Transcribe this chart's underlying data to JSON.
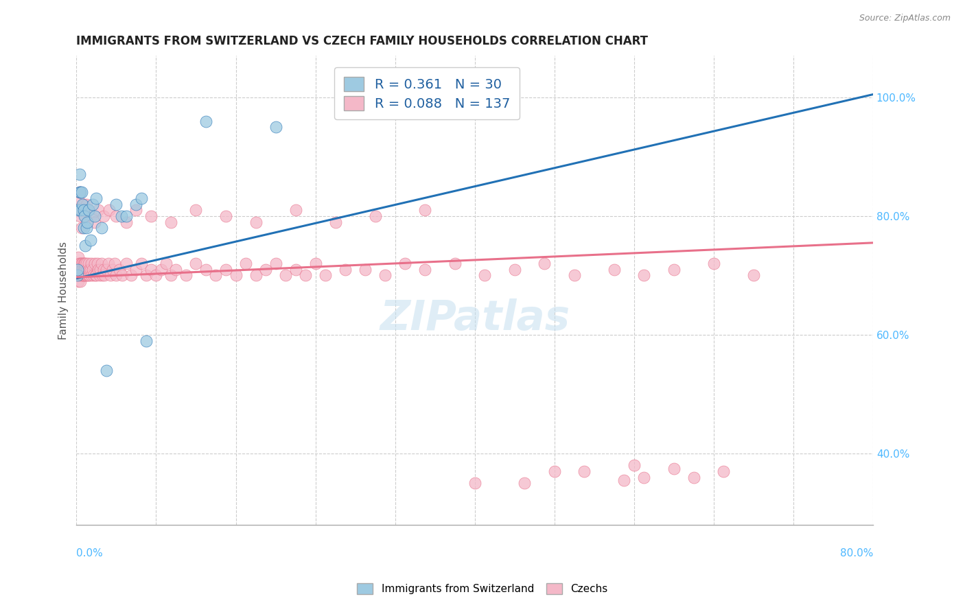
{
  "title": "IMMIGRANTS FROM SWITZERLAND VS CZECH FAMILY HOUSEHOLDS CORRELATION CHART",
  "source": "Source: ZipAtlas.com",
  "ylabel": "Family Households",
  "legend1_label": "Immigrants from Switzerland",
  "legend2_label": "Czechs",
  "R1": 0.361,
  "N1": 30,
  "R2": 0.088,
  "N2": 137,
  "color_blue": "#9ecae1",
  "color_pink": "#f4b8c8",
  "color_blue_line": "#2171b5",
  "color_pink_line": "#e8708a",
  "color_axis_labels": "#4db8ff",
  "watermark": "ZIPatlas",
  "xmin": 0.0,
  "xmax": 0.8,
  "ymin": 0.28,
  "ymax": 1.07,
  "yticks": [
    0.4,
    0.6,
    0.8,
    1.0
  ],
  "ytick_labels": [
    "40.0%",
    "60.0%",
    "80.0%",
    "100.0%"
  ],
  "swiss_x": [
    0.001,
    0.001,
    0.002,
    0.003,
    0.003,
    0.004,
    0.004,
    0.005,
    0.006,
    0.007,
    0.007,
    0.008,
    0.009,
    0.01,
    0.011,
    0.012,
    0.014,
    0.016,
    0.018,
    0.02,
    0.025,
    0.03,
    0.04,
    0.045,
    0.05,
    0.06,
    0.065,
    0.07,
    0.13,
    0.2
  ],
  "swiss_y": [
    0.7,
    0.71,
    0.81,
    0.87,
    0.84,
    0.84,
    0.81,
    0.84,
    0.82,
    0.81,
    0.78,
    0.8,
    0.75,
    0.78,
    0.79,
    0.81,
    0.76,
    0.82,
    0.8,
    0.83,
    0.78,
    0.54,
    0.82,
    0.8,
    0.8,
    0.82,
    0.83,
    0.59,
    0.96,
    0.95
  ],
  "czech_x": [
    0.001,
    0.001,
    0.002,
    0.002,
    0.002,
    0.003,
    0.003,
    0.003,
    0.004,
    0.004,
    0.004,
    0.005,
    0.005,
    0.005,
    0.006,
    0.006,
    0.006,
    0.007,
    0.007,
    0.007,
    0.008,
    0.008,
    0.008,
    0.009,
    0.009,
    0.009,
    0.01,
    0.01,
    0.01,
    0.011,
    0.011,
    0.012,
    0.012,
    0.013,
    0.013,
    0.014,
    0.015,
    0.015,
    0.016,
    0.017,
    0.018,
    0.019,
    0.02,
    0.021,
    0.022,
    0.023,
    0.024,
    0.025,
    0.026,
    0.027,
    0.028,
    0.03,
    0.032,
    0.034,
    0.036,
    0.038,
    0.04,
    0.043,
    0.046,
    0.05,
    0.055,
    0.06,
    0.065,
    0.07,
    0.075,
    0.08,
    0.085,
    0.09,
    0.095,
    0.1,
    0.11,
    0.12,
    0.13,
    0.14,
    0.15,
    0.16,
    0.17,
    0.18,
    0.19,
    0.2,
    0.21,
    0.22,
    0.23,
    0.24,
    0.25,
    0.27,
    0.29,
    0.31,
    0.33,
    0.35,
    0.38,
    0.41,
    0.44,
    0.47,
    0.5,
    0.54,
    0.57,
    0.6,
    0.64,
    0.68,
    0.002,
    0.003,
    0.004,
    0.005,
    0.006,
    0.007,
    0.008,
    0.009,
    0.01,
    0.012,
    0.015,
    0.018,
    0.022,
    0.027,
    0.033,
    0.04,
    0.05,
    0.06,
    0.075,
    0.095,
    0.12,
    0.15,
    0.18,
    0.22,
    0.26,
    0.3,
    0.35,
    0.4,
    0.45,
    0.48,
    0.51,
    0.55,
    0.56,
    0.57,
    0.6,
    0.62,
    0.65
  ],
  "czech_y": [
    0.7,
    0.71,
    0.69,
    0.72,
    0.73,
    0.7,
    0.72,
    0.71,
    0.7,
    0.72,
    0.69,
    0.7,
    0.72,
    0.71,
    0.7,
    0.72,
    0.71,
    0.7,
    0.72,
    0.71,
    0.7,
    0.71,
    0.72,
    0.7,
    0.71,
    0.72,
    0.7,
    0.71,
    0.72,
    0.7,
    0.71,
    0.7,
    0.72,
    0.7,
    0.71,
    0.71,
    0.7,
    0.72,
    0.71,
    0.7,
    0.72,
    0.7,
    0.7,
    0.72,
    0.71,
    0.7,
    0.71,
    0.72,
    0.7,
    0.71,
    0.7,
    0.71,
    0.72,
    0.7,
    0.71,
    0.72,
    0.7,
    0.71,
    0.7,
    0.72,
    0.7,
    0.71,
    0.72,
    0.7,
    0.71,
    0.7,
    0.71,
    0.72,
    0.7,
    0.71,
    0.7,
    0.72,
    0.71,
    0.7,
    0.71,
    0.7,
    0.72,
    0.7,
    0.71,
    0.72,
    0.7,
    0.71,
    0.7,
    0.72,
    0.7,
    0.71,
    0.71,
    0.7,
    0.72,
    0.71,
    0.72,
    0.7,
    0.71,
    0.72,
    0.7,
    0.71,
    0.7,
    0.71,
    0.72,
    0.7,
    0.83,
    0.84,
    0.8,
    0.78,
    0.81,
    0.82,
    0.81,
    0.8,
    0.82,
    0.81,
    0.8,
    0.79,
    0.81,
    0.8,
    0.81,
    0.8,
    0.79,
    0.81,
    0.8,
    0.79,
    0.81,
    0.8,
    0.79,
    0.81,
    0.79,
    0.8,
    0.81,
    0.35,
    0.35,
    0.37,
    0.37,
    0.355,
    0.38,
    0.36,
    0.375,
    0.36,
    0.37
  ]
}
